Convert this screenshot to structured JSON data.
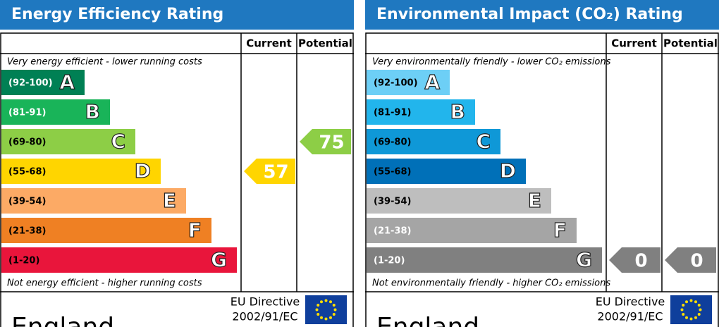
{
  "panels": [
    {
      "title": "Energy Efficiency Rating",
      "columns": [
        "Current",
        "Potential"
      ],
      "top_note": "Very energy efficient - lower running costs",
      "bottom_note": "Not energy efficient - higher running costs",
      "bands": [
        {
          "range": "(92-100)",
          "letter": "A",
          "color": "#008054",
          "label_color": "#ffffff"
        },
        {
          "range": "(81-91)",
          "letter": "B",
          "color": "#19b459",
          "label_color": "#ffffff"
        },
        {
          "range": "(69-80)",
          "letter": "C",
          "color": "#8dce46",
          "label_color": "#000000"
        },
        {
          "range": "(55-68)",
          "letter": "D",
          "color": "#ffd500",
          "label_color": "#000000"
        },
        {
          "range": "(39-54)",
          "letter": "E",
          "color": "#fcaa65",
          "label_color": "#000000"
        },
        {
          "range": "(21-38)",
          "letter": "F",
          "color": "#ef8023",
          "label_color": "#000000"
        },
        {
          "range": "(1-20)",
          "letter": "G",
          "color": "#e9153b",
          "label_color": "#000000"
        }
      ],
      "current": 57,
      "potential": 75,
      "country": "England",
      "directive": [
        "EU Directive",
        "2002/91/EC"
      ]
    },
    {
      "title": "Environmental Impact (CO₂) Rating",
      "columns": [
        "Current",
        "Potential"
      ],
      "top_note": "Very environmentally friendly - lower CO₂ emissions",
      "bottom_note": "Not environmentally friendly - higher CO₂ emissions",
      "bands": [
        {
          "range": "(92-100)",
          "letter": "A",
          "color": "#6dcff6",
          "label_color": "#000000"
        },
        {
          "range": "(81-91)",
          "letter": "B",
          "color": "#22b5ec",
          "label_color": "#000000"
        },
        {
          "range": "(69-80)",
          "letter": "C",
          "color": "#0f98d7",
          "label_color": "#000000"
        },
        {
          "range": "(55-68)",
          "letter": "D",
          "color": "#0070b8",
          "label_color": "#000000"
        },
        {
          "range": "(39-54)",
          "letter": "E",
          "color": "#bebebe",
          "label_color": "#000000"
        },
        {
          "range": "(21-38)",
          "letter": "F",
          "color": "#a5a5a5",
          "label_color": "#ffffff"
        },
        {
          "range": "(1-20)",
          "letter": "G",
          "color": "#808080",
          "label_color": "#ffffff"
        }
      ],
      "current": 0,
      "potential": 0,
      "country": "England",
      "directive": [
        "EU Directive",
        "2002/91/EC"
      ]
    }
  ]
}
